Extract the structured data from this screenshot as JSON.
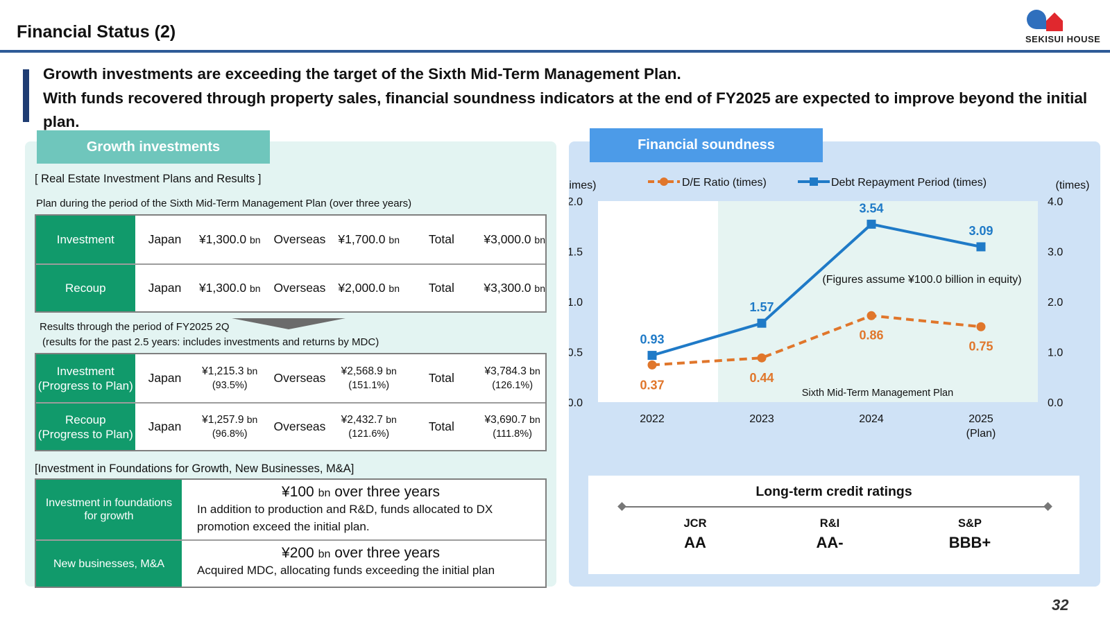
{
  "header": {
    "title": "Financial Status (2)",
    "logo_text": "SEKISUI HOUSE",
    "colors": {
      "rule": "#2f5b97",
      "logo_blue": "#2f6fbd",
      "logo_red": "#e0282e"
    }
  },
  "lead": {
    "line1": "Growth investments are exceeding the target of the Sixth Mid-Term Management Plan.",
    "line2": "With funds recovered through property sales, financial soundness indicators at the end of FY2025 are expected to improve beyond the initial plan."
  },
  "growth": {
    "tab": "Growth investments",
    "section1": "[ Real Estate Investment Plans and Results ]",
    "plan_caption": "Plan during the period of the Sixth Mid-Term Management Plan (over three years)",
    "unit": "bn",
    "plan_rows": [
      {
        "label": "Investment",
        "japan_label": "Japan",
        "japan": "¥1,300.0",
        "overseas_label": "Overseas",
        "overseas": "¥1,700.0",
        "total_label": "Total",
        "total": "¥3,000.0"
      },
      {
        "label": "Recoup",
        "japan_label": "Japan",
        "japan": "¥1,300.0",
        "overseas_label": "Overseas",
        "overseas": "¥2,000.0",
        "total_label": "Total",
        "total": "¥3,300.0"
      }
    ],
    "results_caption1": "Results through the period of FY2025 2Q",
    "results_caption2": "(results for the past 2.5 years: includes investments and returns by MDC)",
    "result_rows": [
      {
        "label1": "Investment",
        "label2": "(Progress to Plan)",
        "japan_label": "Japan",
        "japan": "¥1,215.3",
        "japan_pct": "(93.5%)",
        "overseas_label": "Overseas",
        "overseas": "¥2,568.9",
        "overseas_pct": "(151.1%)",
        "total_label": "Total",
        "total": "¥3,784.3",
        "total_pct": "(126.1%)"
      },
      {
        "label1": "Recoup",
        "label2": "(Progress to Plan)",
        "japan_label": "Japan",
        "japan": "¥1,257.9",
        "japan_pct": "(96.8%)",
        "overseas_label": "Overseas",
        "overseas": "¥2,432.7",
        "overseas_pct": "(121.6%)",
        "total_label": "Total",
        "total": "¥3,690.7",
        "total_pct": "(111.8%)"
      }
    ],
    "section2": "[Investment in Foundations for Growth, New Businesses, M&A]",
    "foundation_rows": [
      {
        "label": "Investment in foundations for growth",
        "amount": "¥100",
        "unit": "bn",
        "period": "over three years",
        "desc": "In addition to production and R&D, funds allocated to DX promotion exceed the initial plan."
      },
      {
        "label": "New businesses, M&A",
        "amount": "¥200",
        "unit": "bn",
        "period": "over three years",
        "desc": "Acquired MDC, allocating funds exceeding the initial plan"
      }
    ],
    "colors": {
      "panel": "#e3f4f2",
      "tab": "#6fc6bc",
      "head": "#119a6b"
    }
  },
  "soundness": {
    "tab": "Financial soundness",
    "colors": {
      "panel": "#cfe2f6",
      "tab": "#4c9be8"
    }
  },
  "chart_data": {
    "type": "line",
    "x": [
      "2022",
      "2023",
      "2024",
      "2025"
    ],
    "x_sublabel": [
      "",
      "",
      "",
      "(Plan)"
    ],
    "left_axis": {
      "label": "(times)",
      "ylim": [
        0.0,
        2.0
      ],
      "ticks": [
        "0.0",
        "0.5",
        "1.0",
        "1.5",
        "2.0"
      ]
    },
    "right_axis": {
      "label": "(times)",
      "ylim": [
        0.0,
        4.0
      ],
      "ticks": [
        "0.0",
        "1.0",
        "2.0",
        "3.0",
        "4.0"
      ]
    },
    "series": [
      {
        "name": "D/E Ratio (times)",
        "axis": "left",
        "values": [
          0.37,
          0.44,
          0.86,
          0.75
        ],
        "labels": [
          "0.37",
          "0.44",
          "0.86",
          "0.75"
        ],
        "color": "#e0762b",
        "style": "dashed",
        "marker": "circle"
      },
      {
        "name": "Debt Repayment Period (times)",
        "axis": "right",
        "values": [
          0.93,
          1.57,
          3.54,
          3.09
        ],
        "labels": [
          "0.93",
          "1.57",
          "3.54",
          "3.09"
        ],
        "color": "#1f7ac7",
        "style": "solid",
        "marker": "square"
      }
    ],
    "annotation": "(Figures assume ¥100.0 billion in equity)",
    "shaded_label": "Sixth Mid-Term Management Plan",
    "shaded_range": [
      "2023",
      "2025"
    ],
    "legend": "top",
    "grid": false
  },
  "credit": {
    "title": "Long-term credit ratings",
    "agencies": [
      {
        "name": "JCR",
        "rating": "AA"
      },
      {
        "name": "R&I",
        "rating": "AA-"
      },
      {
        "name": "S&P",
        "rating": "BBB+"
      }
    ]
  },
  "footer": {
    "page_number": "32"
  }
}
